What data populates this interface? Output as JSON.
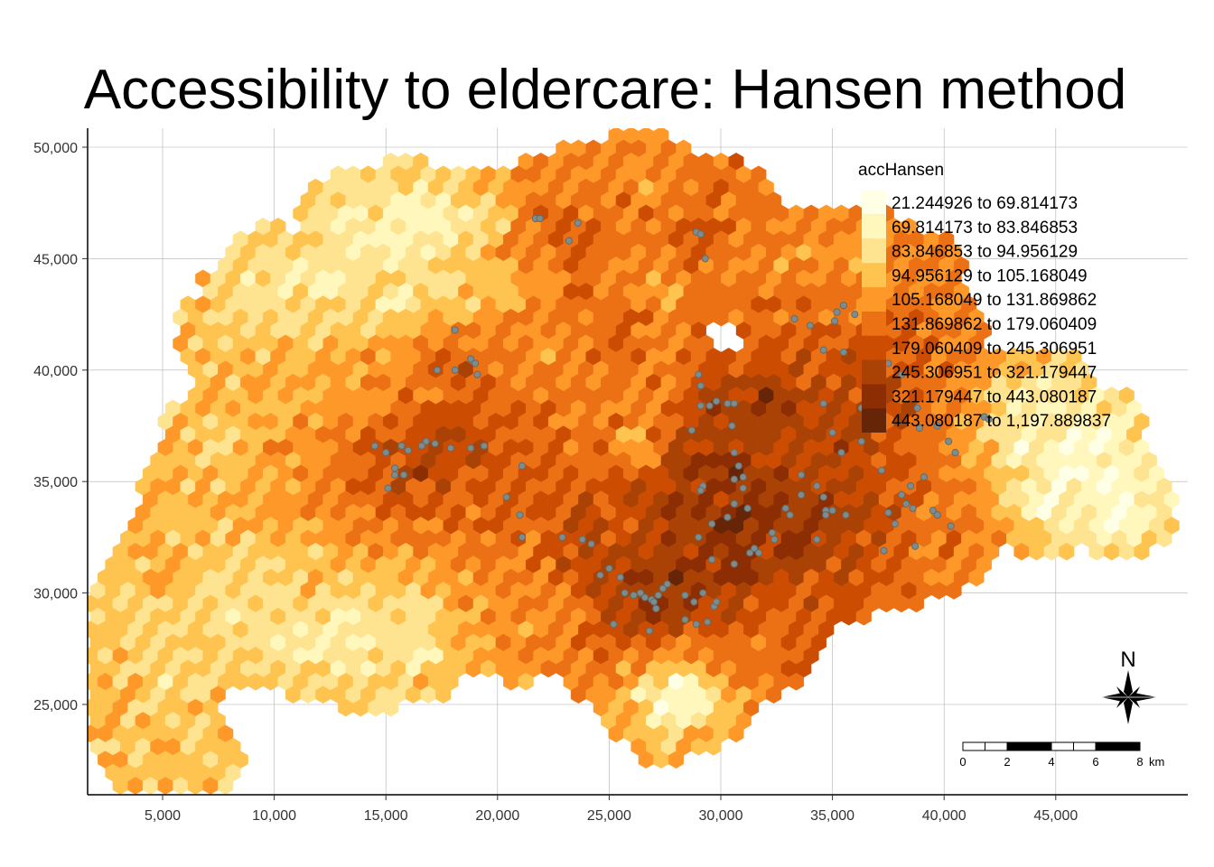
{
  "title": "Accessibility to eldercare: Hansen method",
  "legend": {
    "title": "accHansen",
    "classes": [
      {
        "label": "21.244926 to 69.814173",
        "color": "#ffffe5"
      },
      {
        "label": "69.814173 to 83.846853",
        "color": "#fff7bc"
      },
      {
        "label": "83.846853 to 94.956129",
        "color": "#fee391"
      },
      {
        "label": "94.956129 to 105.168049",
        "color": "#fec44f"
      },
      {
        "label": "105.168049 to 131.869862",
        "color": "#fe9929"
      },
      {
        "label": "131.869862 to 179.060409",
        "color": "#ec7014"
      },
      {
        "label": "179.060409 to 245.306951",
        "color": "#cc4c02"
      },
      {
        "label": "245.306951 to 321.179447",
        "color": "#a94204"
      },
      {
        "label": "321.179447 to 443.080187",
        "color": "#8c2d04"
      },
      {
        "label": "443.080187 to 1,197.889837",
        "color": "#662506"
      }
    ]
  },
  "x_axis": {
    "ticks": [
      {
        "value": 5000,
        "label": "5,000"
      },
      {
        "value": 10000,
        "label": "10,000"
      },
      {
        "value": 15000,
        "label": "15,000"
      },
      {
        "value": 20000,
        "label": "20,000"
      },
      {
        "value": 25000,
        "label": "25,000"
      },
      {
        "value": 30000,
        "label": "30,000"
      },
      {
        "value": 35000,
        "label": "35,000"
      },
      {
        "value": 40000,
        "label": "40,000"
      },
      {
        "value": 45000,
        "label": "45,000"
      }
    ]
  },
  "y_axis": {
    "ticks": [
      {
        "value": 25000,
        "label": "25,000"
      },
      {
        "value": 30000,
        "label": "30,000"
      },
      {
        "value": 35000,
        "label": "35,000"
      },
      {
        "value": 40000,
        "label": "40,000"
      },
      {
        "value": 45000,
        "label": "45,000"
      },
      {
        "value": 50000,
        "label": "50,000"
      }
    ]
  },
  "north_arrow": {
    "label": "N"
  },
  "scale_bar": {
    "labels": [
      "0",
      "2",
      "4",
      "6",
      "8"
    ],
    "unit": "km"
  },
  "grid": true,
  "point_color": "#7f8c8d",
  "eldercare_points": [
    [
      21700,
      46800
    ],
    [
      21900,
      46800
    ],
    [
      23600,
      46600
    ],
    [
      23200,
      45800
    ],
    [
      28900,
      46200
    ],
    [
      29100,
      46100
    ],
    [
      29300,
      45000
    ],
    [
      18100,
      41800
    ],
    [
      17300,
      40000
    ],
    [
      18100,
      40000
    ],
    [
      18800,
      40500
    ],
    [
      19000,
      40300
    ],
    [
      19100,
      39800
    ],
    [
      14500,
      36600
    ],
    [
      15000,
      36300
    ],
    [
      15700,
      36600
    ],
    [
      16000,
      36400
    ],
    [
      16600,
      36600
    ],
    [
      16800,
      36800
    ],
    [
      17200,
      36700
    ],
    [
      17900,
      36500
    ],
    [
      18800,
      36500
    ],
    [
      19400,
      36600
    ],
    [
      15400,
      35600
    ],
    [
      15400,
      35300
    ],
    [
      15800,
      35300
    ],
    [
      15100,
      34700
    ],
    [
      21100,
      35700
    ],
    [
      20400,
      34300
    ],
    [
      21000,
      33500
    ],
    [
      21100,
      32500
    ],
    [
      22900,
      32500
    ],
    [
      23800,
      32400
    ],
    [
      24200,
      32200
    ],
    [
      25000,
      31100
    ],
    [
      24600,
      30800
    ],
    [
      25500,
      30700
    ],
    [
      25700,
      30000
    ],
    [
      26100,
      29900
    ],
    [
      26400,
      30000
    ],
    [
      26600,
      29800
    ],
    [
      26900,
      29700
    ],
    [
      27200,
      29900
    ],
    [
      27400,
      30200
    ],
    [
      27600,
      30400
    ],
    [
      27000,
      29600
    ],
    [
      27100,
      29300
    ],
    [
      26800,
      28300
    ],
    [
      25200,
      28600
    ],
    [
      28800,
      29600
    ],
    [
      29200,
      30000
    ],
    [
      29400,
      28700
    ],
    [
      29700,
      29400
    ],
    [
      29800,
      29600
    ],
    [
      28900,
      28600
    ],
    [
      28400,
      29900
    ],
    [
      28400,
      28800
    ],
    [
      29000,
      39800
    ],
    [
      29100,
      39300
    ],
    [
      29500,
      38400
    ],
    [
      29100,
      38400
    ],
    [
      29800,
      38600
    ],
    [
      30300,
      38500
    ],
    [
      30600,
      38500
    ],
    [
      30500,
      37500
    ],
    [
      28700,
      37300
    ],
    [
      30600,
      36300
    ],
    [
      30800,
      35700
    ],
    [
      30600,
      35100
    ],
    [
      31000,
      35200
    ],
    [
      31000,
      34700
    ],
    [
      30600,
      34000
    ],
    [
      31200,
      33800
    ],
    [
      30300,
      33400
    ],
    [
      29200,
      34800
    ],
    [
      29100,
      34600
    ],
    [
      29600,
      33100
    ],
    [
      29000,
      32500
    ],
    [
      29600,
      31500
    ],
    [
      30600,
      31300
    ],
    [
      31300,
      31800
    ],
    [
      31500,
      32000
    ],
    [
      31700,
      31800
    ],
    [
      32300,
      32700
    ],
    [
      32400,
      32400
    ],
    [
      32900,
      33800
    ],
    [
      33100,
      33500
    ],
    [
      33600,
      34400
    ],
    [
      34300,
      34800
    ],
    [
      34600,
      34300
    ],
    [
      34700,
      33700
    ],
    [
      34700,
      33500
    ],
    [
      35000,
      33700
    ],
    [
      35600,
      33500
    ],
    [
      34300,
      32400
    ],
    [
      33600,
      35300
    ],
    [
      35400,
      36300
    ],
    [
      35000,
      37200
    ],
    [
      34600,
      38500
    ],
    [
      34600,
      40900
    ],
    [
      35100,
      42200
    ],
    [
      35200,
      42600
    ],
    [
      35500,
      42900
    ],
    [
      36000,
      42500
    ],
    [
      36800,
      42300
    ],
    [
      35500,
      40800
    ],
    [
      37500,
      40300
    ],
    [
      38100,
      39800
    ],
    [
      38800,
      38300
    ],
    [
      38900,
      37400
    ],
    [
      39700,
      37500
    ],
    [
      40200,
      36800
    ],
    [
      40500,
      36300
    ],
    [
      39100,
      35200
    ],
    [
      38500,
      34800
    ],
    [
      38100,
      34400
    ],
    [
      38300,
      34000
    ],
    [
      38600,
      33800
    ],
    [
      39500,
      33700
    ],
    [
      39700,
      33500
    ],
    [
      40300,
      33000
    ],
    [
      41800,
      37900
    ],
    [
      42000,
      37800
    ],
    [
      37500,
      33600
    ],
    [
      37800,
      33100
    ],
    [
      38700,
      32100
    ],
    [
      37300,
      31900
    ],
    [
      33300,
      42300
    ],
    [
      34000,
      42000
    ],
    [
      36300,
      38300
    ],
    [
      36500,
      38000
    ],
    [
      36300,
      36800
    ],
    [
      37200,
      35500
    ]
  ],
  "region_anchors": [
    [
      24500,
      41500,
      7
    ],
    [
      25500,
      42500,
      7
    ],
    [
      23500,
      43500,
      6
    ],
    [
      24800,
      39000,
      6
    ],
    [
      26000,
      40800,
      6
    ],
    [
      23000,
      41500,
      5
    ],
    [
      22000,
      43000,
      5
    ],
    [
      27000,
      41500,
      5
    ],
    [
      26500,
      38500,
      5
    ],
    [
      25000,
      44000,
      5
    ],
    [
      27500,
      43500,
      4
    ],
    [
      22500,
      40500,
      4
    ],
    [
      20500,
      44000,
      3
    ],
    [
      26200,
      36500,
      3
    ],
    [
      30000,
      33000,
      10
    ],
    [
      28000,
      31000,
      10
    ],
    [
      27000,
      29000,
      10
    ],
    [
      30500,
      35500,
      10
    ],
    [
      33500,
      32000,
      10
    ],
    [
      32000,
      38500,
      10
    ],
    [
      31000,
      31000,
      10
    ],
    [
      29000,
      30000,
      10
    ],
    [
      26000,
      30500,
      9
    ],
    [
      34500,
      34000,
      9
    ],
    [
      28500,
      36000,
      9
    ],
    [
      32500,
      35000,
      9
    ],
    [
      29500,
      38500,
      9
    ],
    [
      25500,
      28500,
      9
    ],
    [
      35500,
      36500,
      8
    ],
    [
      36500,
      33500,
      8
    ],
    [
      34000,
      38000,
      8
    ],
    [
      24000,
      33000,
      8
    ],
    [
      26000,
      34500,
      8
    ],
    [
      28000,
      33500,
      9
    ],
    [
      31500,
      33500,
      10
    ],
    [
      30000,
      29000,
      8
    ],
    [
      16500,
      35500,
      9
    ],
    [
      17500,
      36800,
      9
    ],
    [
      19000,
      36500,
      8
    ],
    [
      18500,
      40000,
      8
    ],
    [
      20000,
      38500,
      7
    ],
    [
      15000,
      36500,
      8
    ],
    [
      15500,
      34500,
      8
    ],
    [
      14000,
      35000,
      7
    ],
    [
      21500,
      36000,
      7
    ],
    [
      22500,
      34000,
      7
    ],
    [
      20500,
      33000,
      7
    ],
    [
      18000,
      33500,
      7
    ],
    [
      16500,
      32500,
      6
    ],
    [
      13000,
      33500,
      6
    ],
    [
      13500,
      36500,
      6
    ],
    [
      18000,
      38000,
      7
    ],
    [
      21500,
      39500,
      6
    ],
    [
      19500,
      41500,
      6
    ],
    [
      17000,
      40500,
      6
    ],
    [
      23500,
      36500,
      6
    ],
    [
      23000,
      31500,
      7
    ],
    [
      24500,
      31000,
      8
    ],
    [
      21500,
      31500,
      6
    ],
    [
      22000,
      29500,
      5
    ],
    [
      25000,
      27500,
      6
    ],
    [
      23000,
      46200,
      8
    ],
    [
      22000,
      47000,
      7
    ],
    [
      24500,
      46000,
      7
    ],
    [
      29000,
      46000,
      8
    ],
    [
      30000,
      47000,
      6
    ],
    [
      27000,
      46500,
      6
    ],
    [
      25500,
      47500,
      6
    ],
    [
      20500,
      45500,
      6
    ],
    [
      29500,
      44500,
      6
    ],
    [
      27800,
      45000,
      5
    ],
    [
      31000,
      45500,
      5
    ],
    [
      24000,
      48000,
      5
    ],
    [
      26500,
      48500,
      4
    ],
    [
      34500,
      41000,
      7
    ],
    [
      36500,
      40500,
      8
    ],
    [
      33000,
      42500,
      6
    ],
    [
      35500,
      43000,
      6
    ],
    [
      37500,
      42500,
      7
    ],
    [
      38000,
      38000,
      8
    ],
    [
      36500,
      37000,
      8
    ],
    [
      38500,
      35000,
      7
    ],
    [
      40000,
      34000,
      6
    ],
    [
      39500,
      37000,
      6
    ],
    [
      40500,
      36000,
      5
    ],
    [
      41000,
      38000,
      5
    ],
    [
      37500,
      39500,
      7
    ],
    [
      32500,
      44500,
      5
    ],
    [
      34000,
      45000,
      5
    ],
    [
      38500,
      44000,
      5
    ],
    [
      36000,
      45000,
      4
    ],
    [
      39500,
      41500,
      6
    ],
    [
      40000,
      32500,
      6
    ],
    [
      37500,
      31500,
      6
    ],
    [
      35500,
      31000,
      7
    ],
    [
      33000,
      30000,
      6
    ],
    [
      31000,
      29000,
      7
    ],
    [
      32000,
      27800,
      5
    ],
    [
      29000,
      27800,
      6
    ],
    [
      42000,
      37500,
      3
    ],
    [
      43500,
      36500,
      1
    ],
    [
      45500,
      36000,
      1
    ],
    [
      47000,
      35000,
      1
    ],
    [
      44500,
      34000,
      1
    ],
    [
      46500,
      37000,
      1
    ],
    [
      48000,
      34000,
      1
    ],
    [
      43000,
      38500,
      2
    ],
    [
      44500,
      38500,
      2
    ],
    [
      12500,
      39500,
      5
    ],
    [
      12000,
      37500,
      5
    ],
    [
      14500,
      38500,
      5
    ],
    [
      9500,
      38500,
      4
    ],
    [
      10500,
      36000,
      5
    ],
    [
      8500,
      35500,
      4
    ],
    [
      11000,
      34000,
      5
    ],
    [
      7500,
      37000,
      3
    ],
    [
      6500,
      35000,
      4
    ],
    [
      6000,
      33000,
      4
    ],
    [
      7000,
      31000,
      3
    ],
    [
      5000,
      31000,
      4
    ],
    [
      4000,
      29000,
      3
    ],
    [
      4000,
      27000,
      4
    ],
    [
      3500,
      25000,
      4
    ],
    [
      4500,
      23000,
      4
    ],
    [
      6000,
      22500,
      4
    ],
    [
      5500,
      26000,
      3
    ],
    [
      3000,
      27500,
      4
    ],
    [
      9500,
      30000,
      3
    ],
    [
      11000,
      29000,
      3
    ],
    [
      13000,
      29500,
      2
    ],
    [
      15000,
      29000,
      3
    ],
    [
      14000,
      28500,
      2
    ],
    [
      10000,
      28000,
      2
    ],
    [
      16500,
      29500,
      2
    ],
    [
      8500,
      29000,
      2
    ],
    [
      12000,
      27500,
      2
    ],
    [
      14000,
      27000,
      2
    ],
    [
      16500,
      27500,
      1
    ],
    [
      10500,
      31500,
      4
    ],
    [
      12000,
      31000,
      4
    ],
    [
      14000,
      31000,
      4
    ],
    [
      16500,
      30500,
      4
    ],
    [
      18000,
      31000,
      5
    ],
    [
      19500,
      30500,
      5
    ],
    [
      20000,
      29500,
      5
    ],
    [
      21000,
      28500,
      5
    ],
    [
      19000,
      28800,
      4
    ],
    [
      10000,
      44000,
      2
    ],
    [
      9000,
      43000,
      3
    ],
    [
      12000,
      44000,
      2
    ],
    [
      13500,
      45000,
      2
    ],
    [
      15500,
      45500,
      1
    ],
    [
      15500,
      43000,
      2
    ],
    [
      13000,
      42000,
      3
    ],
    [
      11000,
      42000,
      3
    ],
    [
      8000,
      41500,
      4
    ],
    [
      9000,
      40500,
      4
    ],
    [
      17000,
      44000,
      2
    ],
    [
      18500,
      43000,
      3
    ],
    [
      19500,
      46500,
      2
    ],
    [
      17500,
      46500,
      1
    ],
    [
      16000,
      47000,
      1
    ],
    [
      13500,
      46500,
      2
    ],
    [
      28000,
      26000,
      1
    ],
    [
      29000,
      25500,
      1
    ],
    [
      26500,
      25800,
      1
    ],
    [
      27500,
      24800,
      1
    ],
    [
      26500,
      26500,
      6
    ]
  ]
}
